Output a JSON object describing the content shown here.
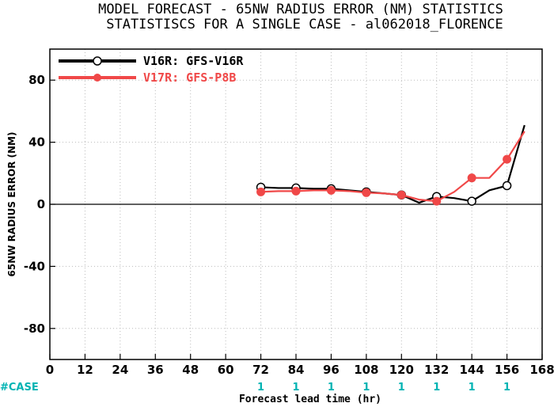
{
  "chart_data": {
    "type": "line",
    "title": "MODEL FORECAST - 65NW RADIUS ERROR (NM) STATISTICS",
    "subtitle": "STATISTISCS FOR A SINGLE CASE - al062018_FLORENCE",
    "xlabel": "Forecast lead time (hr)",
    "ylabel": "65NW RADIUS ERROR (NM)",
    "xlim": [
      0,
      168
    ],
    "ylim": [
      -100,
      100
    ],
    "xticks": [
      "0",
      "12",
      "24",
      "36",
      "48",
      "60",
      "72",
      "84",
      "96",
      "108",
      "120",
      "132",
      "144",
      "156",
      "168"
    ],
    "yticks": [
      "80",
      "40",
      "0",
      "-40",
      "-80"
    ],
    "grid": true,
    "legend_position": "top-left",
    "count_label": "#CASE",
    "count_color": "#00b3b3",
    "case_counts": [
      {
        "x": 72,
        "label": "1"
      },
      {
        "x": 84,
        "label": "1"
      },
      {
        "x": 96,
        "label": "1"
      },
      {
        "x": 108,
        "label": "1"
      },
      {
        "x": 120,
        "label": "1"
      },
      {
        "x": 132,
        "label": "1"
      },
      {
        "x": 144,
        "label": "1"
      },
      {
        "x": 156,
        "label": "1"
      }
    ],
    "series": [
      {
        "name": "V16R: GFS-V16R",
        "color": "#000000",
        "marker": "open-circle",
        "points": [
          [
            72,
            11
          ],
          [
            78,
            10.5
          ],
          [
            84,
            10.5
          ],
          [
            90,
            10
          ],
          [
            96,
            10
          ],
          [
            102,
            9
          ],
          [
            108,
            8
          ],
          [
            114,
            7
          ],
          [
            120,
            6
          ],
          [
            126,
            1
          ],
          [
            132,
            5
          ],
          [
            138,
            4
          ],
          [
            144,
            2
          ],
          [
            150,
            9
          ],
          [
            156,
            12
          ],
          [
            162,
            51
          ]
        ],
        "marker_x": [
          72,
          84,
          96,
          108,
          120,
          132,
          144,
          156
        ]
      },
      {
        "name": "V17R: GFS-P8B",
        "color": "#f04848",
        "marker": "filled-circle",
        "points": [
          [
            72,
            8
          ],
          [
            78,
            8.5
          ],
          [
            84,
            8.5
          ],
          [
            90,
            9
          ],
          [
            96,
            9
          ],
          [
            102,
            8.5
          ],
          [
            108,
            7.5
          ],
          [
            114,
            7
          ],
          [
            120,
            6
          ],
          [
            126,
            3
          ],
          [
            132,
            2
          ],
          [
            138,
            8
          ],
          [
            144,
            17
          ],
          [
            150,
            17
          ],
          [
            156,
            29
          ],
          [
            162,
            47
          ]
        ],
        "marker_x": [
          72,
          84,
          96,
          108,
          120,
          132,
          144,
          156
        ]
      }
    ]
  }
}
